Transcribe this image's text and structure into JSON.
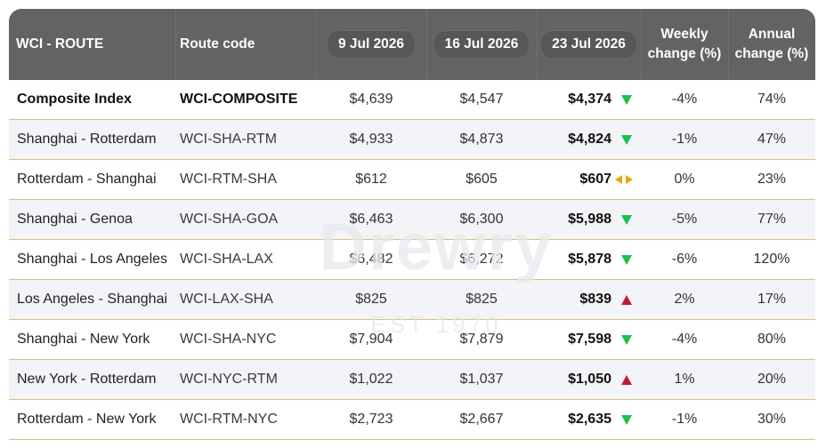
{
  "header": {
    "route": "WCI - ROUTE",
    "code": "Route code",
    "date1": "9 Jul 2026",
    "date2": "16 Jul 2026",
    "date3": "23 Jul 2026",
    "weekly_line1": "Weekly",
    "weekly_line2": "change (%)",
    "annual_line1": "Annual",
    "annual_line2": "change (%)"
  },
  "watermark": {
    "brand": "Drewry",
    "est": "EST 1970"
  },
  "colors": {
    "header_bg": "#636363",
    "pill_bg": "#575757",
    "down": "#1fbf4a",
    "up": "#c01840",
    "flat": "#f0a500",
    "row_border": "#d8c07a"
  },
  "rows": [
    {
      "route": "Composite Index",
      "code": "WCI-COMPOSITE",
      "d1": "$4,639",
      "d2": "$4,547",
      "d3": "$4,374",
      "trend": "down",
      "weekly": "-4%",
      "annual": "74%"
    },
    {
      "route": "Shanghai - Rotterdam",
      "code": "WCI-SHA-RTM",
      "d1": "$4,933",
      "d2": "$4,873",
      "d3": "$4,824",
      "trend": "down",
      "weekly": "-1%",
      "annual": "47%"
    },
    {
      "route": "Rotterdam - Shanghai",
      "code": "WCI-RTM-SHA",
      "d1": "$612",
      "d2": "$605",
      "d3": "$607",
      "trend": "flat",
      "weekly": "0%",
      "annual": "23%"
    },
    {
      "route": "Shanghai - Genoa",
      "code": "WCI-SHA-GOA",
      "d1": "$6,463",
      "d2": "$6,300",
      "d3": "$5,988",
      "trend": "down",
      "weekly": "-5%",
      "annual": "77%"
    },
    {
      "route": "Shanghai - Los Angeles",
      "code": "WCI-SHA-LAX",
      "d1": "$6,482",
      "d2": "$6,272",
      "d3": "$5,878",
      "trend": "down",
      "weekly": "-6%",
      "annual": "120%"
    },
    {
      "route": "Los Angeles - Shanghai",
      "code": "WCI-LAX-SHA",
      "d1": "$825",
      "d2": "$825",
      "d3": "$839",
      "trend": "up",
      "weekly": "2%",
      "annual": "17%"
    },
    {
      "route": "Shanghai - New York",
      "code": "WCI-SHA-NYC",
      "d1": "$7,904",
      "d2": "$7,879",
      "d3": "$7,598",
      "trend": "down",
      "weekly": "-4%",
      "annual": "80%"
    },
    {
      "route": "New York - Rotterdam",
      "code": "WCI-NYC-RTM",
      "d1": "$1,022",
      "d2": "$1,037",
      "d3": "$1,050",
      "trend": "up",
      "weekly": "1%",
      "annual": "20%"
    },
    {
      "route": "Rotterdam - New York",
      "code": "WCI-RTM-NYC",
      "d1": "$2,723",
      "d2": "$2,667",
      "d3": "$2,635",
      "trend": "down",
      "weekly": "-1%",
      "annual": "30%"
    }
  ]
}
